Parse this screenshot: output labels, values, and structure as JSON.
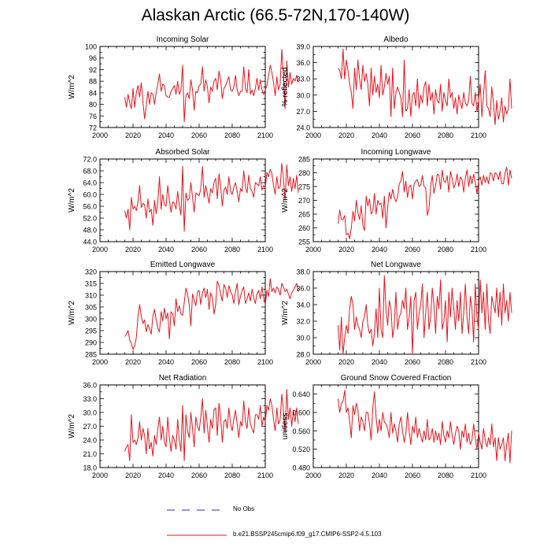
{
  "figure": {
    "title": "Alaskan Arctic (66.5-72N,170-140W)",
    "series_color": "#e8141c",
    "obs_color": "#2a2aa8"
  },
  "legend": {
    "obs_label": "No Obs",
    "model_label": "b.e21.BSSP245cmip6.f09_g17.CMIP6-SSP2-4.5.103"
  },
  "chart_data": [
    {
      "type": "line",
      "title": "Incoming Solar",
      "ylabel": "W/m^2",
      "xlim": [
        2000,
        2100
      ],
      "xticks": [
        2000,
        2020,
        2040,
        2060,
        2080,
        2100
      ],
      "ylim": [
        72,
        100
      ],
      "yticks": [
        "72",
        "76",
        "80",
        "84",
        "88",
        "92",
        "96",
        "100"
      ],
      "x_start": 2015,
      "values": [
        82.5,
        79.0,
        83.5,
        80.5,
        78.5,
        85.5,
        79.0,
        84.0,
        86.5,
        82.5,
        87.5,
        81.0,
        75.0,
        79.5,
        84.5,
        80.0,
        84.0,
        83.5,
        80.0,
        84.0,
        87.0,
        90.5,
        84.5,
        87.0,
        86.5,
        83.0,
        82.5,
        82.5,
        84.5,
        85.5,
        86.5,
        83.5,
        88.0,
        83.5,
        85.0,
        93.5,
        74.0,
        83.0,
        84.0,
        82.0,
        88.5,
        85.0,
        78.0,
        84.5,
        84.0,
        86.5,
        87.0,
        93.0,
        84.5,
        88.5,
        86.0,
        80.5,
        86.0,
        84.5,
        88.0,
        89.0,
        85.0,
        91.5,
        88.5,
        82.0,
        85.5,
        86.5,
        88.0,
        89.5,
        85.0,
        84.5,
        86.0,
        90.0,
        85.0,
        83.0,
        84.5,
        84.5,
        93.0,
        85.5,
        84.0,
        92.0,
        83.5,
        85.0,
        83.0,
        85.5,
        89.0,
        85.0,
        88.5,
        85.0,
        83.5,
        85.0,
        86.5,
        90.0,
        93.5,
        91.0,
        87.5,
        83.0,
        89.5,
        85.0,
        87.0,
        99.0,
        90.0,
        78.5,
        95.0,
        86.0,
        91.0,
        87.0,
        89.0,
        88.0,
        90.0,
        87.5
      ]
    },
    {
      "type": "line",
      "title": "Albedo",
      "ylabel": "% reflected",
      "xlim": [
        2000,
        2100
      ],
      "xticks": [
        2000,
        2020,
        2040,
        2060,
        2080,
        2100
      ],
      "ylim": [
        24,
        39
      ],
      "yticks": [
        "24.0",
        "27.0",
        "30.0",
        "33.0",
        "36.0",
        "39.0"
      ],
      "x_start": 2015,
      "values": [
        35.0,
        34.5,
        33.0,
        38.5,
        33.0,
        36.5,
        34.5,
        32.0,
        30.5,
        27.5,
        35.0,
        31.0,
        36.5,
        33.0,
        31.0,
        35.5,
        32.5,
        34.0,
        32.0,
        28.0,
        35.0,
        30.0,
        33.5,
        30.5,
        32.0,
        29.5,
        35.5,
        30.0,
        31.5,
        34.0,
        32.0,
        33.5,
        26.0,
        35.0,
        27.5,
        30.5,
        31.5,
        30.5,
        29.5,
        26.0,
        36.5,
        27.0,
        27.5,
        31.0,
        26.0,
        30.0,
        30.5,
        28.0,
        33.0,
        27.5,
        30.0,
        28.5,
        31.5,
        32.5,
        28.0,
        32.0,
        29.0,
        30.5,
        26.5,
        31.0,
        29.0,
        28.5,
        32.0,
        27.0,
        30.5,
        29.0,
        28.0,
        33.0,
        29.5,
        30.5,
        27.5,
        29.5,
        26.5,
        30.0,
        28.5,
        27.5,
        30.5,
        28.5,
        28.0,
        29.0,
        33.5,
        28.5,
        28.0,
        30.5,
        27.0,
        29.0,
        32.0,
        26.0,
        30.0,
        34.5,
        28.0,
        27.5,
        26.0,
        31.5,
        28.5,
        24.5,
        29.0,
        25.5,
        27.0,
        29.5,
        25.0,
        28.0,
        26.5,
        27.5,
        33.0,
        27.5
      ]
    },
    {
      "type": "line",
      "title": "Absorbed Solar",
      "ylabel": "W/m^2",
      "xlim": [
        2000,
        2100
      ],
      "xticks": [
        2000,
        2020,
        2040,
        2060,
        2080,
        2100
      ],
      "ylim": [
        44,
        72
      ],
      "yticks": [
        "44.0",
        "48.0",
        "52.0",
        "56.0",
        "60.0",
        "64.0",
        "68.0",
        "72.0"
      ],
      "x_start": 2015,
      "values": [
        54.5,
        52.0,
        55.0,
        48.0,
        59.0,
        55.0,
        56.0,
        54.5,
        57.5,
        63.0,
        55.5,
        57.0,
        56.5,
        52.0,
        58.5,
        54.0,
        55.0,
        49.5,
        58.0,
        53.5,
        57.5,
        66.0,
        55.0,
        60.0,
        56.5,
        56.0,
        63.0,
        58.0,
        54.0,
        57.5,
        57.0,
        55.0,
        61.0,
        56.5,
        53.0,
        69.5,
        47.5,
        60.5,
        58.0,
        58.5,
        64.0,
        59.0,
        54.0,
        60.5,
        60.0,
        59.5,
        62.0,
        69.5,
        59.0,
        63.0,
        60.0,
        57.0,
        62.0,
        60.5,
        64.0,
        65.5,
        58.5,
        67.0,
        63.0,
        56.0,
        61.5,
        62.5,
        60.0,
        66.0,
        61.0,
        60.0,
        62.5,
        64.0,
        61.0,
        57.5,
        62.0,
        61.0,
        68.0,
        62.5,
        60.5,
        66.5,
        62.0,
        61.0,
        59.0,
        64.0,
        63.5,
        63.0,
        66.0,
        61.5,
        63.0,
        62.0,
        67.5,
        66.0,
        68.5,
        67.0,
        63.0,
        60.0,
        66.0,
        62.0,
        62.5,
        70.5,
        65.5,
        58.0,
        70.0,
        63.0,
        66.0,
        61.0,
        65.5,
        62.0,
        66.5,
        60.5
      ]
    },
    {
      "type": "line",
      "title": "Incoming Longwave",
      "ylabel": "W/m^2",
      "xlim": [
        2000,
        2100
      ],
      "xticks": [
        2000,
        2020,
        2040,
        2060,
        2080,
        2100
      ],
      "ylim": [
        255,
        285
      ],
      "yticks": [
        "255",
        "260",
        "265",
        "270",
        "275",
        "280",
        "285"
      ],
      "x_start": 2015,
      "values": [
        261.5,
        266.5,
        263.0,
        263.0,
        264.5,
        257.5,
        258.0,
        256.0,
        260.0,
        266.0,
        262.5,
        270.0,
        265.5,
        263.0,
        268.0,
        261.0,
        259.0,
        271.5,
        268.0,
        270.5,
        265.0,
        266.0,
        272.5,
        265.0,
        270.0,
        268.5,
        269.0,
        263.5,
        271.5,
        260.0,
        267.5,
        273.0,
        270.5,
        274.0,
        271.0,
        269.5,
        271.0,
        276.0,
        277.0,
        280.5,
        273.0,
        277.0,
        271.0,
        275.0,
        275.5,
        270.5,
        276.0,
        277.0,
        277.5,
        275.0,
        275.5,
        279.0,
        275.0,
        274.5,
        264.5,
        267.0,
        275.0,
        279.0,
        272.5,
        275.5,
        279.5,
        279.0,
        274.0,
        281.0,
        277.0,
        276.5,
        279.0,
        273.0,
        280.5,
        278.0,
        274.5,
        276.0,
        279.5,
        275.0,
        278.5,
        277.5,
        273.0,
        278.0,
        281.0,
        275.0,
        279.0,
        276.0,
        279.5,
        276.5,
        272.5,
        277.0,
        278.5,
        275.5,
        279.0,
        276.5,
        278.5,
        276.0,
        280.0,
        279.5,
        277.0,
        280.0,
        279.5,
        277.5,
        280.5,
        276.0,
        276.0,
        280.0,
        282.0,
        275.5,
        281.0,
        278.0
      ]
    },
    {
      "type": "line",
      "title": "Emitted Longwave",
      "ylabel": "W/m^2",
      "xlim": [
        2000,
        2100
      ],
      "xticks": [
        2000,
        2020,
        2040,
        2060,
        2080,
        2100
      ],
      "ylim": [
        285,
        320
      ],
      "yticks": [
        "285",
        "290",
        "295",
        "300",
        "305",
        "310",
        "315",
        "320"
      ],
      "x_start": 2015,
      "values": [
        292.5,
        293.5,
        295.0,
        291.0,
        289.5,
        287.0,
        288.5,
        292.0,
        301.0,
        306.0,
        301.0,
        298.0,
        299.5,
        294.5,
        297.5,
        296.0,
        293.5,
        301.0,
        304.0,
        299.5,
        296.0,
        294.5,
        303.0,
        299.0,
        304.5,
        300.0,
        302.5,
        291.5,
        303.0,
        302.0,
        297.0,
        308.5,
        303.0,
        305.5,
        302.0,
        301.5,
        307.0,
        313.0,
        310.5,
        306.0,
        297.0,
        310.5,
        308.0,
        305.5,
        311.5,
        312.0,
        306.0,
        311.0,
        313.0,
        309.0,
        312.5,
        304.0,
        311.0,
        309.0,
        302.0,
        306.0,
        316.0,
        314.0,
        310.5,
        307.5,
        314.5,
        313.0,
        309.0,
        314.0,
        311.5,
        310.0,
        306.5,
        311.5,
        315.0,
        306.0,
        309.5,
        312.0,
        313.5,
        306.5,
        308.5,
        311.0,
        307.5,
        312.5,
        309.0,
        306.5,
        310.5,
        312.0,
        308.5,
        313.5,
        309.0,
        306.0,
        312.0,
        309.5,
        317.0,
        311.5,
        313.0,
        311.0,
        313.5,
        312.5,
        310.0,
        315.0,
        313.5,
        311.5,
        312.5,
        310.5,
        308.5,
        311.0,
        312.0,
        313.5,
        315.0,
        311.5
      ]
    },
    {
      "type": "line",
      "title": "Net Longwave",
      "ylabel": "W/m^2",
      "xlim": [
        2000,
        2100
      ],
      "xticks": [
        2000,
        2020,
        2040,
        2060,
        2080,
        2100
      ],
      "ylim": [
        28,
        38
      ],
      "yticks": [
        "28.0",
        "30.0",
        "32.0",
        "34.0",
        "36.0",
        "38.0"
      ],
      "x_start": 2015,
      "values": [
        31.5,
        28.5,
        32.5,
        28.0,
        30.0,
        31.5,
        30.5,
        33.5,
        35.0,
        34.0,
        31.0,
        32.5,
        31.5,
        31.0,
        30.0,
        32.0,
        32.5,
        34.0,
        31.5,
        30.5,
        31.0,
        29.0,
        30.5,
        33.5,
        30.0,
        36.0,
        31.0,
        30.0,
        37.5,
        33.5,
        31.5,
        34.5,
        33.5,
        30.0,
        31.5,
        35.5,
        31.0,
        32.5,
        33.0,
        34.5,
        33.5,
        36.0,
        31.0,
        32.5,
        35.0,
        28.0,
        34.5,
        35.5,
        31.0,
        33.0,
        34.0,
        36.5,
        30.0,
        33.0,
        35.5,
        31.0,
        32.5,
        36.0,
        34.0,
        30.5,
        35.0,
        33.5,
        37.0,
        31.0,
        32.0,
        34.5,
        29.5,
        35.5,
        32.5,
        36.0,
        33.5,
        31.0,
        34.5,
        32.0,
        35.5,
        30.5,
        33.0,
        36.5,
        32.5,
        30.5,
        35.0,
        33.5,
        29.5,
        36.5,
        32.5,
        31.0,
        37.0,
        33.0,
        35.5,
        31.0,
        36.5,
        32.0,
        30.5,
        35.0,
        34.0,
        33.0,
        36.0,
        32.5,
        35.5,
        31.5,
        36.5,
        33.0,
        34.5,
        32.0,
        35.5,
        33.0
      ]
    },
    {
      "type": "line",
      "title": "Net Radiation",
      "ylabel": "W/m^2",
      "xlim": [
        2000,
        2100
      ],
      "xticks": [
        2000,
        2020,
        2040,
        2060,
        2080,
        2100
      ],
      "ylim": [
        18,
        36
      ],
      "yticks": [
        "18.0",
        "21.0",
        "24.0",
        "27.0",
        "30.0",
        "33.0",
        "36.0"
      ],
      "x_start": 2015,
      "values": [
        21.5,
        22.5,
        23.0,
        19.5,
        29.5,
        23.5,
        24.0,
        23.0,
        24.5,
        28.0,
        24.0,
        26.5,
        25.0,
        21.0,
        26.5,
        22.0,
        23.5,
        20.5,
        25.0,
        23.0,
        26.5,
        29.0,
        24.0,
        27.0,
        23.5,
        22.5,
        29.0,
        24.5,
        21.5,
        25.0,
        24.0,
        22.0,
        28.5,
        24.0,
        21.5,
        31.5,
        19.5,
        29.5,
        26.0,
        24.5,
        30.0,
        26.5,
        22.5,
        29.0,
        27.0,
        26.0,
        29.0,
        33.0,
        25.5,
        30.5,
        27.0,
        23.5,
        28.5,
        26.5,
        30.5,
        31.0,
        25.0,
        32.0,
        29.0,
        23.5,
        28.0,
        28.5,
        26.5,
        31.0,
        27.5,
        26.0,
        28.5,
        30.5,
        27.5,
        24.5,
        28.0,
        27.0,
        32.5,
        28.0,
        26.5,
        31.0,
        27.5,
        26.5,
        25.5,
        29.5,
        29.5,
        28.5,
        31.5,
        27.0,
        29.0,
        28.0,
        31.5,
        30.5,
        33.0,
        31.5,
        28.5,
        26.0,
        31.0,
        27.5,
        28.5,
        34.0,
        30.5,
        25.5,
        35.0,
        28.5,
        31.0,
        27.0,
        30.5,
        28.0,
        31.0,
        27.5
      ]
    },
    {
      "type": "line",
      "title": "Ground Snow Covered Fraction",
      "ylabel": "unitless",
      "xlim": [
        2000,
        2100
      ],
      "xticks": [
        2000,
        2020,
        2040,
        2060,
        2080,
        2100
      ],
      "ylim": [
        0.48,
        0.66
      ],
      "yticks": [
        "0.480",
        "0.520",
        "0.560",
        "0.600",
        "0.640"
      ],
      "x_start": 2015,
      "values": [
        0.63,
        0.6,
        0.62,
        0.625,
        0.648,
        0.6,
        0.61,
        0.58,
        0.545,
        0.615,
        0.595,
        0.62,
        0.605,
        0.56,
        0.59,
        0.58,
        0.56,
        0.6,
        0.6,
        0.575,
        0.54,
        0.61,
        0.645,
        0.59,
        0.555,
        0.585,
        0.56,
        0.6,
        0.58,
        0.575,
        0.565,
        0.545,
        0.6,
        0.555,
        0.575,
        0.56,
        0.535,
        0.575,
        0.59,
        0.56,
        0.535,
        0.555,
        0.6,
        0.56,
        0.53,
        0.57,
        0.555,
        0.59,
        0.545,
        0.565,
        0.55,
        0.535,
        0.56,
        0.54,
        0.585,
        0.54,
        0.545,
        0.565,
        0.535,
        0.56,
        0.54,
        0.555,
        0.53,
        0.58,
        0.55,
        0.535,
        0.56,
        0.545,
        0.58,
        0.55,
        0.53,
        0.555,
        0.57,
        0.56,
        0.52,
        0.56,
        0.545,
        0.575,
        0.535,
        0.555,
        0.53,
        0.54,
        0.575,
        0.545,
        0.52,
        0.555,
        0.535,
        0.52,
        0.565,
        0.54,
        0.525,
        0.545,
        0.53,
        0.575,
        0.525,
        0.545,
        0.495,
        0.545,
        0.52,
        0.53,
        0.545,
        0.495,
        0.53,
        0.555,
        0.49,
        0.56
      ]
    }
  ]
}
